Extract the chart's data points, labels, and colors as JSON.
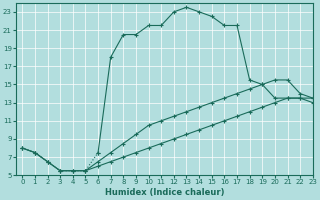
{
  "xlabel": "Humidex (Indice chaleur)",
  "background_color": "#b2dede",
  "grid_color": "#ffffff",
  "line_color": "#1a6b5a",
  "xlim": [
    -0.5,
    23
  ],
  "ylim": [
    5,
    24
  ],
  "xticks": [
    0,
    1,
    2,
    3,
    4,
    5,
    6,
    7,
    8,
    9,
    10,
    11,
    12,
    13,
    14,
    15,
    16,
    17,
    18,
    19,
    20,
    21,
    22,
    23
  ],
  "yticks": [
    5,
    7,
    9,
    11,
    13,
    15,
    17,
    19,
    21,
    23
  ],
  "line1": {
    "x": [
      0,
      1,
      2,
      3,
      4,
      5,
      6,
      7,
      8,
      9,
      10,
      11,
      12,
      13,
      14,
      15,
      16,
      17,
      18,
      19,
      20,
      21,
      22,
      23
    ],
    "y": [
      8,
      7.5,
      6.5,
      5.5,
      5.5,
      5.5,
      6.0,
      6.5,
      7.0,
      7.5,
      8.0,
      8.5,
      9.0,
      9.5,
      10.0,
      10.5,
      11.0,
      11.5,
      12.0,
      12.5,
      13.0,
      13.5,
      13.5,
      13.5
    ],
    "style": "solid"
  },
  "line2": {
    "x": [
      0,
      1,
      2,
      3,
      4,
      5,
      6,
      7,
      8,
      9,
      10,
      11,
      12,
      13,
      14,
      15,
      16,
      17,
      18,
      19,
      20,
      21,
      22,
      23
    ],
    "y": [
      8,
      7.5,
      6.5,
      5.5,
      5.5,
      5.5,
      6.5,
      7.5,
      8.5,
      9.5,
      10.5,
      11.0,
      11.5,
      12.0,
      12.5,
      13.0,
      13.5,
      14.0,
      14.5,
      15.0,
      15.5,
      15.5,
      14.0,
      13.5
    ],
    "style": "solid"
  },
  "line3": {
    "x": [
      0,
      1,
      2,
      3,
      4,
      5,
      6,
      7,
      8,
      9,
      10,
      11,
      12,
      13,
      14,
      15,
      16,
      17,
      18,
      19,
      20,
      21,
      22,
      23
    ],
    "y": [
      8,
      7.5,
      6.5,
      5.5,
      5.5,
      5.5,
      7.5,
      18.0,
      20.5,
      20.5,
      21.5,
      21.5,
      23.0,
      23.5,
      23.0,
      22.5,
      21.5,
      21.5,
      15.5,
      15.0,
      13.5,
      13.5,
      13.5,
      13.0
    ],
    "style": "dotted"
  }
}
